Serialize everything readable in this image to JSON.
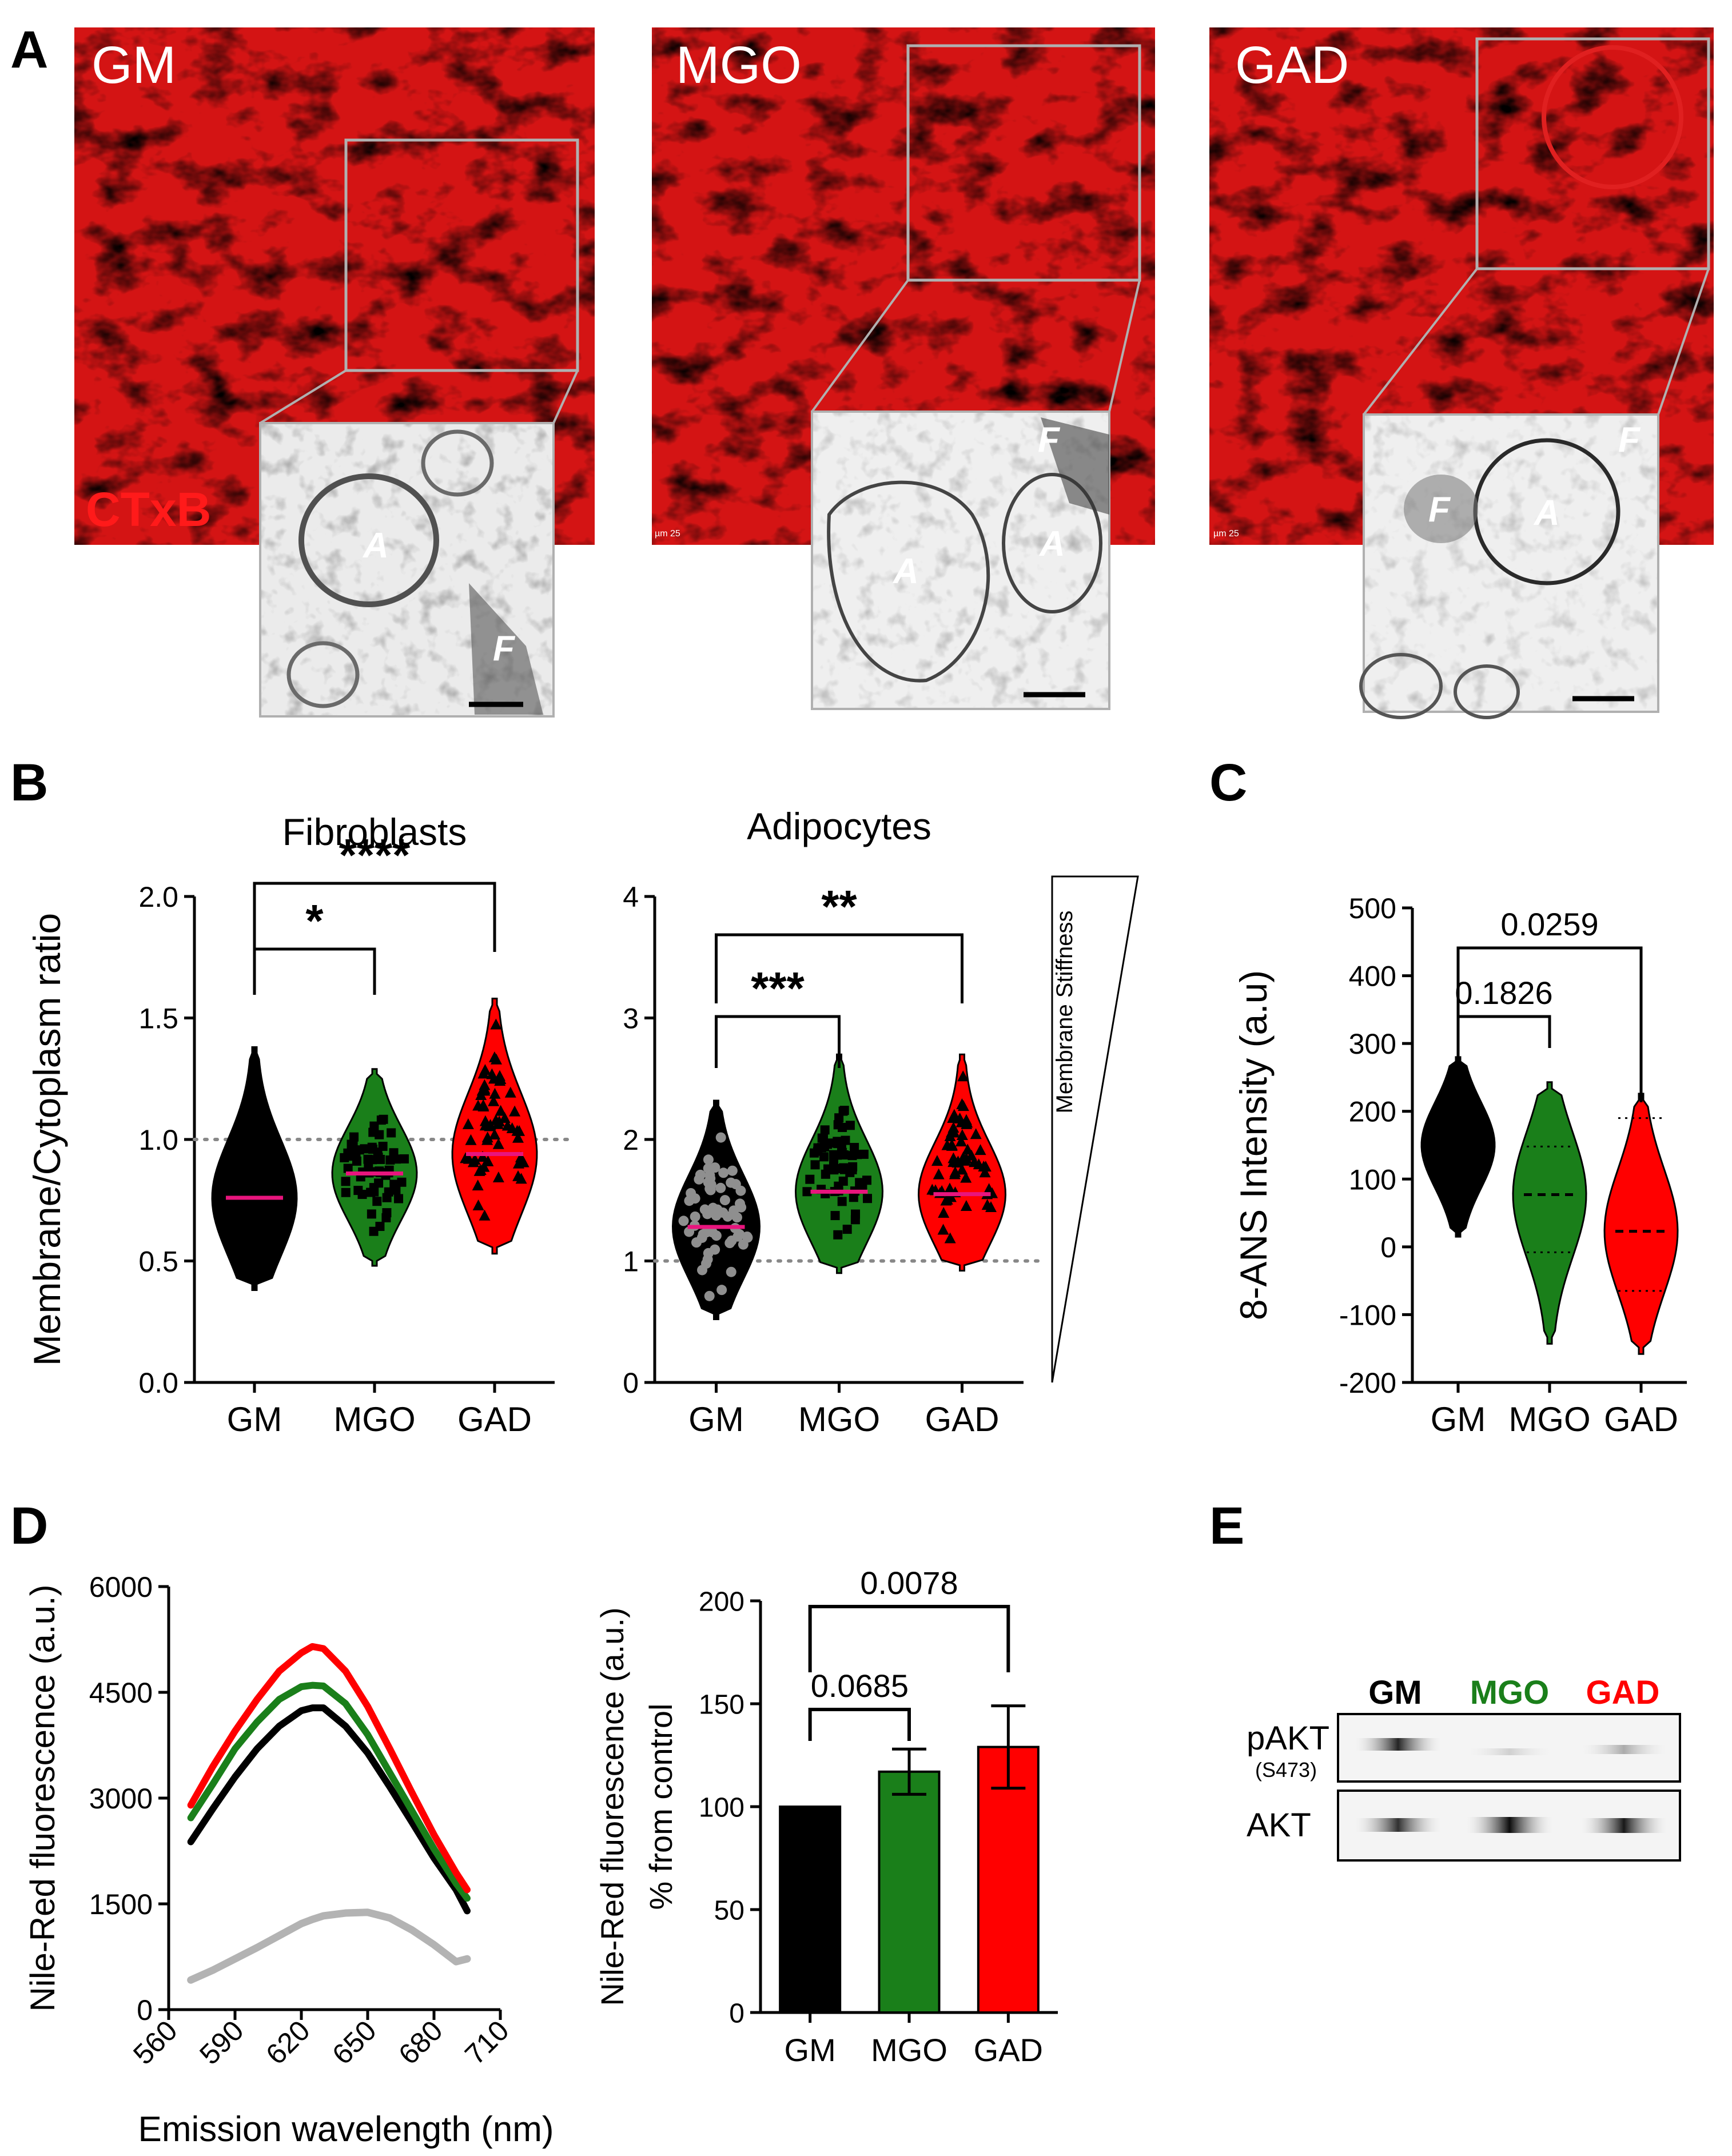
{
  "panel_labels": {
    "a": "A",
    "b": "B",
    "c": "C",
    "d": "D",
    "e": "E"
  },
  "panel_a": {
    "stain_label": "CTxB",
    "micrographs": [
      {
        "title": "GM",
        "inset_labels": [
          "A",
          "F"
        ]
      },
      {
        "title": "MGO",
        "inset_labels": [
          "A",
          "A",
          "F"
        ]
      },
      {
        "title": "GAD",
        "inset_labels": [
          "F",
          "A",
          "F"
        ]
      }
    ],
    "scale_text": "µm 25"
  },
  "colors": {
    "GM": "#000000",
    "MGO": "#1a7f1a",
    "GAD": "#ff0000",
    "control": "#b3b3b3",
    "median": "#e8157d"
  },
  "chart_data": [
    {
      "id": "B-fibroblasts",
      "type": "violin",
      "title": "Fibroblasts",
      "ylabel": "Membrane/Cytoplasm ratio",
      "categories": [
        "GM",
        "MGO",
        "GAD"
      ],
      "ylim": [
        0.0,
        2.0
      ],
      "yticks": [
        "0.0",
        "0.5",
        "1.0",
        "1.5",
        "2.0"
      ],
      "reference_line": 1.0,
      "series": [
        {
          "name": "GM",
          "min": 0.38,
          "max": 1.38,
          "median": 0.76
        },
        {
          "name": "MGO",
          "min": 0.48,
          "max": 1.29,
          "median": 0.86
        },
        {
          "name": "GAD",
          "min": 0.53,
          "max": 1.58,
          "median": 0.94
        }
      ],
      "significance": [
        {
          "pair": [
            "GM",
            "MGO"
          ],
          "label": "*"
        },
        {
          "pair": [
            "GM",
            "GAD"
          ],
          "label": "****"
        }
      ]
    },
    {
      "id": "B-adipocytes",
      "type": "violin",
      "title": "Adipocytes",
      "ylabel": "",
      "categories": [
        "GM",
        "MGO",
        "GAD"
      ],
      "ylim": [
        0,
        4
      ],
      "yticks": [
        "0",
        "1",
        "2",
        "3",
        "4"
      ],
      "reference_line": 1.0,
      "side_label": "Membrane Stiffness",
      "series": [
        {
          "name": "GM",
          "min": 0.52,
          "max": 2.32,
          "median": 1.28
        },
        {
          "name": "MGO",
          "min": 0.9,
          "max": 2.7,
          "median": 1.57
        },
        {
          "name": "GAD",
          "min": 0.92,
          "max": 2.7,
          "median": 1.55
        }
      ],
      "significance": [
        {
          "pair": [
            "GM",
            "MGO"
          ],
          "label": "***"
        },
        {
          "pair": [
            "GM",
            "GAD"
          ],
          "label": "**"
        }
      ]
    },
    {
      "id": "C",
      "type": "violin",
      "title": "",
      "ylabel": "8-ANS Intensity (a.u)",
      "categories": [
        "GM",
        "MGO",
        "GAD"
      ],
      "ylim": [
        -200,
        500
      ],
      "yticks": [
        "-200",
        "-100",
        "0",
        "100",
        "200",
        "300",
        "400",
        "500"
      ],
      "series": [
        {
          "name": "GM",
          "min": 15,
          "max": 280,
          "median": 150,
          "q1": 90,
          "q3": 200
        },
        {
          "name": "MGO",
          "min": -143,
          "max": 243,
          "median": 77,
          "q1": -8,
          "q3": 148
        },
        {
          "name": "GAD",
          "min": -158,
          "max": 226,
          "median": 23,
          "q1": -65,
          "q3": 190
        }
      ],
      "significance": [
        {
          "pair": [
            "GM",
            "MGO"
          ],
          "label": "0.1826"
        },
        {
          "pair": [
            "GM",
            "GAD"
          ],
          "label": "0.0259"
        }
      ]
    },
    {
      "id": "D-spectra",
      "type": "line",
      "title": "",
      "xlabel": "Emission wavelength (nm)",
      "ylabel": "Nile-Red fluorescence (a.u.)",
      "xlim": [
        560,
        710
      ],
      "ylim": [
        0,
        6000
      ],
      "xticks": [
        "560",
        "590",
        "620",
        "650",
        "680",
        "710"
      ],
      "yticks": [
        "0",
        "1500",
        "3000",
        "4500",
        "6000"
      ],
      "x": [
        570,
        580,
        590,
        600,
        610,
        620,
        625,
        630,
        640,
        650,
        660,
        670,
        680,
        690,
        695
      ],
      "series": [
        {
          "name": "control",
          "values": [
            420,
            560,
            720,
            880,
            1050,
            1220,
            1280,
            1330,
            1370,
            1380,
            1300,
            1130,
            920,
            680,
            720
          ]
        },
        {
          "name": "GM",
          "values": [
            2380,
            2850,
            3300,
            3700,
            4020,
            4240,
            4280,
            4280,
            4020,
            3640,
            3160,
            2660,
            2150,
            1700,
            1400
          ]
        },
        {
          "name": "MGO",
          "values": [
            2720,
            3200,
            3700,
            4080,
            4400,
            4580,
            4600,
            4590,
            4340,
            3900,
            3360,
            2820,
            2280,
            1790,
            1580
          ]
        },
        {
          "name": "GAD",
          "values": [
            2900,
            3450,
            3950,
            4400,
            4800,
            5060,
            5150,
            5120,
            4800,
            4300,
            3700,
            3080,
            2480,
            1940,
            1700
          ]
        }
      ]
    },
    {
      "id": "D-bars",
      "type": "bar",
      "title": "",
      "ylabel": "Nile-Red fluorescence (a.u.)",
      "ylabel2": "% from control",
      "categories": [
        "GM",
        "MGO",
        "GAD"
      ],
      "ylim": [
        0,
        200
      ],
      "yticks": [
        "0",
        "50",
        "100",
        "150",
        "200"
      ],
      "values": [
        100,
        117,
        129
      ],
      "errors": [
        0,
        11,
        20
      ],
      "significance": [
        {
          "pair": [
            "GM",
            "MGO"
          ],
          "label": "0.0685"
        },
        {
          "pair": [
            "GM",
            "GAD"
          ],
          "label": "0.0078"
        }
      ]
    }
  ],
  "panel_e": {
    "lanes": [
      "GM",
      "MGO",
      "GAD"
    ],
    "rows": [
      {
        "label": "pAKT",
        "sublabel": "(S473)"
      },
      {
        "label": "AKT",
        "sublabel": ""
      }
    ]
  }
}
